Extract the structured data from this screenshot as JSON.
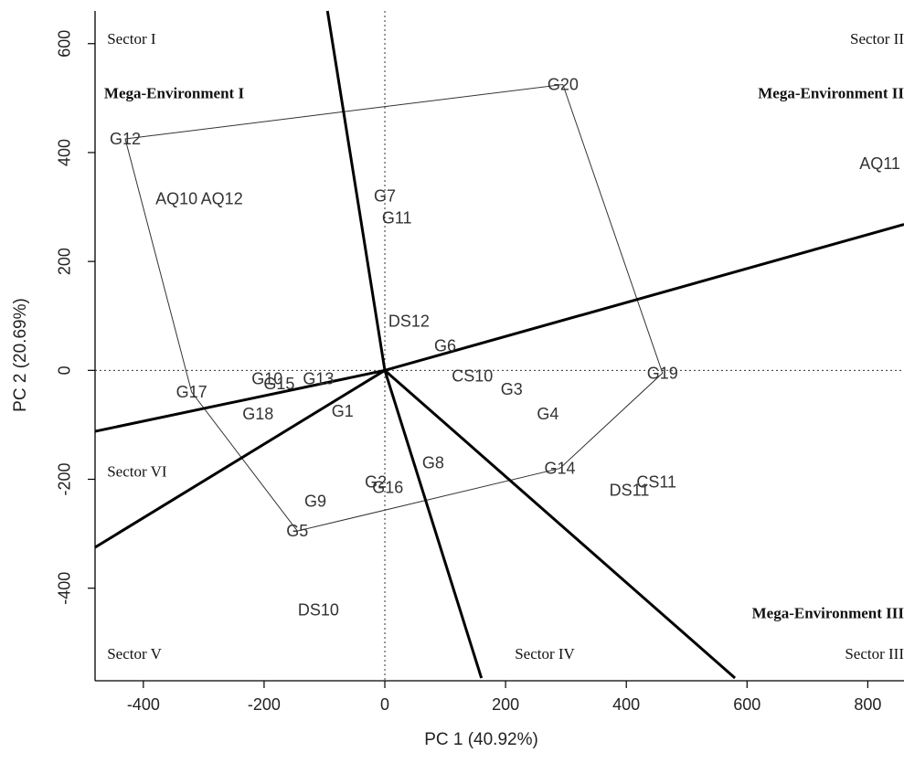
{
  "chart_data": {
    "type": "scatter",
    "title": "",
    "xlabel": "PC 1 (40.92%)",
    "ylabel": "PC 2 (20.69%)",
    "xlim": [
      -480,
      860
    ],
    "ylim": [
      -570,
      660
    ],
    "xticks": [
      -400,
      -200,
      0,
      200,
      400,
      600,
      800
    ],
    "yticks": [
      -400,
      -200,
      0,
      200,
      400,
      600
    ],
    "x_tick_labels": [
      "-400",
      "-200",
      "0",
      "200",
      "400",
      "600",
      "800"
    ],
    "y_tick_labels": [
      "-400",
      "-200",
      "0",
      "200",
      "400",
      "600"
    ],
    "grid": false,
    "reference_lines": {
      "x": 0,
      "y": 0,
      "style": "dotted"
    },
    "genotypes": [
      {
        "label": "G1",
        "x": -70,
        "y": -75
      },
      {
        "label": "G2",
        "x": -15,
        "y": -205
      },
      {
        "label": "G3",
        "x": 210,
        "y": -35
      },
      {
        "label": "G4",
        "x": 270,
        "y": -80
      },
      {
        "label": "G5",
        "x": -145,
        "y": -295
      },
      {
        "label": "G6",
        "x": 100,
        "y": 45
      },
      {
        "label": "G7",
        "x": 0,
        "y": 320
      },
      {
        "label": "G8",
        "x": 80,
        "y": -170
      },
      {
        "label": "G9",
        "x": -115,
        "y": -240
      },
      {
        "label": "G10",
        "x": -195,
        "y": -15
      },
      {
        "label": "G11",
        "x": 20,
        "y": 280
      },
      {
        "label": "G12",
        "x": -430,
        "y": 425
      },
      {
        "label": "G13",
        "x": -110,
        "y": -15
      },
      {
        "label": "G14",
        "x": 290,
        "y": -180
      },
      {
        "label": "G15",
        "x": -175,
        "y": -25
      },
      {
        "label": "G16",
        "x": 5,
        "y": -215
      },
      {
        "label": "G17",
        "x": -320,
        "y": -40
      },
      {
        "label": "G18",
        "x": -210,
        "y": -80
      },
      {
        "label": "G19",
        "x": 460,
        "y": -5
      },
      {
        "label": "G20",
        "x": 295,
        "y": 525
      }
    ],
    "environments": [
      {
        "label": "AQ10",
        "x": -345,
        "y": 315
      },
      {
        "label": "AQ11",
        "x": 820,
        "y": 380
      },
      {
        "label": "AQ12",
        "x": -270,
        "y": 315
      },
      {
        "label": "CS10",
        "x": 145,
        "y": -10
      },
      {
        "label": "CS11",
        "x": 450,
        "y": -205
      },
      {
        "label": "DS10",
        "x": -110,
        "y": -440
      },
      {
        "label": "DS11",
        "x": 405,
        "y": -220
      },
      {
        "label": "DS12",
        "x": 40,
        "y": 90
      }
    ],
    "polygon_vertices": [
      "G12",
      "G20",
      "G19",
      "G14",
      "G5",
      "G17"
    ],
    "polygon": [
      [
        -430,
        425
      ],
      [
        295,
        525
      ],
      [
        460,
        -5
      ],
      [
        290,
        -180
      ],
      [
        -145,
        -295
      ],
      [
        -320,
        -40
      ]
    ],
    "sector_rays": [
      [
        -95,
        660
      ],
      [
        860,
        268
      ],
      [
        160,
        -565
      ],
      [
        580,
        -565
      ],
      [
        -480,
        -325
      ],
      [
        -480,
        -112
      ]
    ],
    "sectors": [
      {
        "label": "Sector I",
        "x": -460,
        "y": 610,
        "anchor": "start"
      },
      {
        "label": "Sector II",
        "x": 860,
        "y": 610,
        "anchor": "end"
      },
      {
        "label": "Sector VI",
        "x": -460,
        "y": -185,
        "anchor": "start"
      },
      {
        "label": "Sector V",
        "x": -460,
        "y": -520,
        "anchor": "start"
      },
      {
        "label": "Sector IV",
        "x": 265,
        "y": -520,
        "anchor": "middle"
      },
      {
        "label": "Sector III",
        "x": 860,
        "y": -520,
        "anchor": "end"
      }
    ],
    "mega_environments": [
      {
        "label": "Mega-Environment I",
        "x": -465,
        "y": 510,
        "anchor": "start"
      },
      {
        "label": "Mega-Environment II",
        "x": 860,
        "y": 510,
        "anchor": "end"
      },
      {
        "label": "Mega-Environment III",
        "x": 860,
        "y": -445,
        "anchor": "end"
      }
    ]
  }
}
